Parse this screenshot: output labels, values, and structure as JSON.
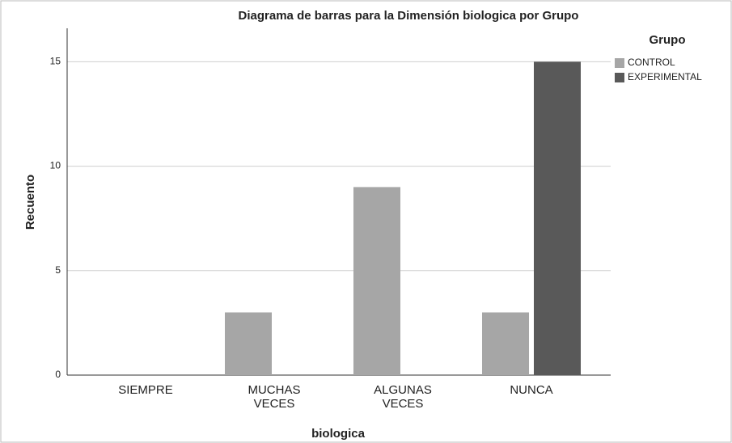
{
  "chart_data": {
    "type": "bar",
    "title": "Diagrama de barras para la Dimensión  biologica  por Grupo",
    "x_label": "biologica",
    "y_label": "Recuento",
    "legend_title": "Grupo",
    "categories": [
      "SIEMPRE",
      "MUCHAS VECES",
      "ALGUNAS VECES",
      "NUNCA"
    ],
    "series": [
      {
        "name": "CONTROL",
        "color": "#a6a6a6",
        "values": [
          0,
          3,
          9,
          3
        ]
      },
      {
        "name": "EXPERIMENTAL",
        "color": "#595959",
        "values": [
          0,
          0,
          0,
          15
        ]
      }
    ],
    "ylim": [
      0,
      16.6
    ],
    "yticks": [
      0,
      5,
      10,
      15
    ],
    "grid": true,
    "legend": "right"
  }
}
